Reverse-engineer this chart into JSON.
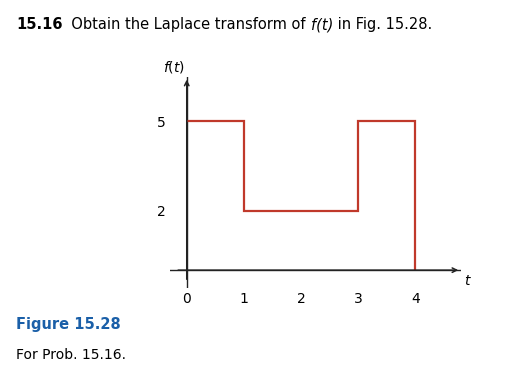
{
  "title_bold": "15.16",
  "title_normal": "  Obtain the Laplace transform of ",
  "title_italic": "f(t)",
  "title_end": " in Fig. 15.28.",
  "figure_label": "Figure 15.28",
  "figure_caption": "For Prob. 15.16.",
  "x_ticks": [
    0,
    1,
    2,
    3,
    4
  ],
  "y_ticks": [
    2,
    5
  ],
  "xlim": [
    -0.3,
    4.8
  ],
  "ylim": [
    -0.6,
    6.5
  ],
  "line_color": "#c0392b",
  "line_width": 1.6,
  "step_x": [
    0,
    1,
    1,
    3,
    3,
    4,
    4
  ],
  "step_y": [
    5,
    5,
    2,
    2,
    5,
    5,
    0
  ],
  "ax_line_color": "#222222",
  "background_color": "#ffffff",
  "fig_label_color": "#1a5fa8"
}
